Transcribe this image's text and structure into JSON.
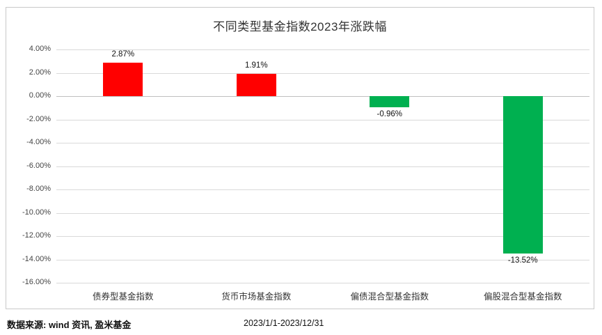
{
  "chart_data": {
    "type": "bar",
    "title": "不同类型基金指数2023年涨跌幅",
    "categories": [
      "债券型基金指数",
      "货币市场基金指数",
      "偏债混合型基金指数",
      "偏股混合型基金指数"
    ],
    "values": [
      2.87,
      1.91,
      -0.96,
      -13.52
    ],
    "value_labels": [
      "2.87%",
      "1.91%",
      "-0.96%",
      "-13.52%"
    ],
    "xlabel": "",
    "ylabel": "",
    "ylim": [
      -16,
      4
    ],
    "yticks": [
      4,
      2,
      0,
      -2,
      -4,
      -6,
      -8,
      -10,
      -12,
      -14,
      -16
    ],
    "ytick_labels": [
      "4.00%",
      "2.00%",
      "0.00%",
      "-2.00%",
      "-4.00%",
      "-6.00%",
      "-8.00%",
      "-10.00%",
      "-12.00%",
      "-14.00%",
      "-16.00%"
    ],
    "grid": true,
    "legend": "none",
    "positive_color": "#ff0000",
    "negative_color": "#00b050"
  },
  "footer": {
    "source": "数据来源: wind 资讯, 盈米基金",
    "period": "2023/1/1-2023/12/31"
  }
}
